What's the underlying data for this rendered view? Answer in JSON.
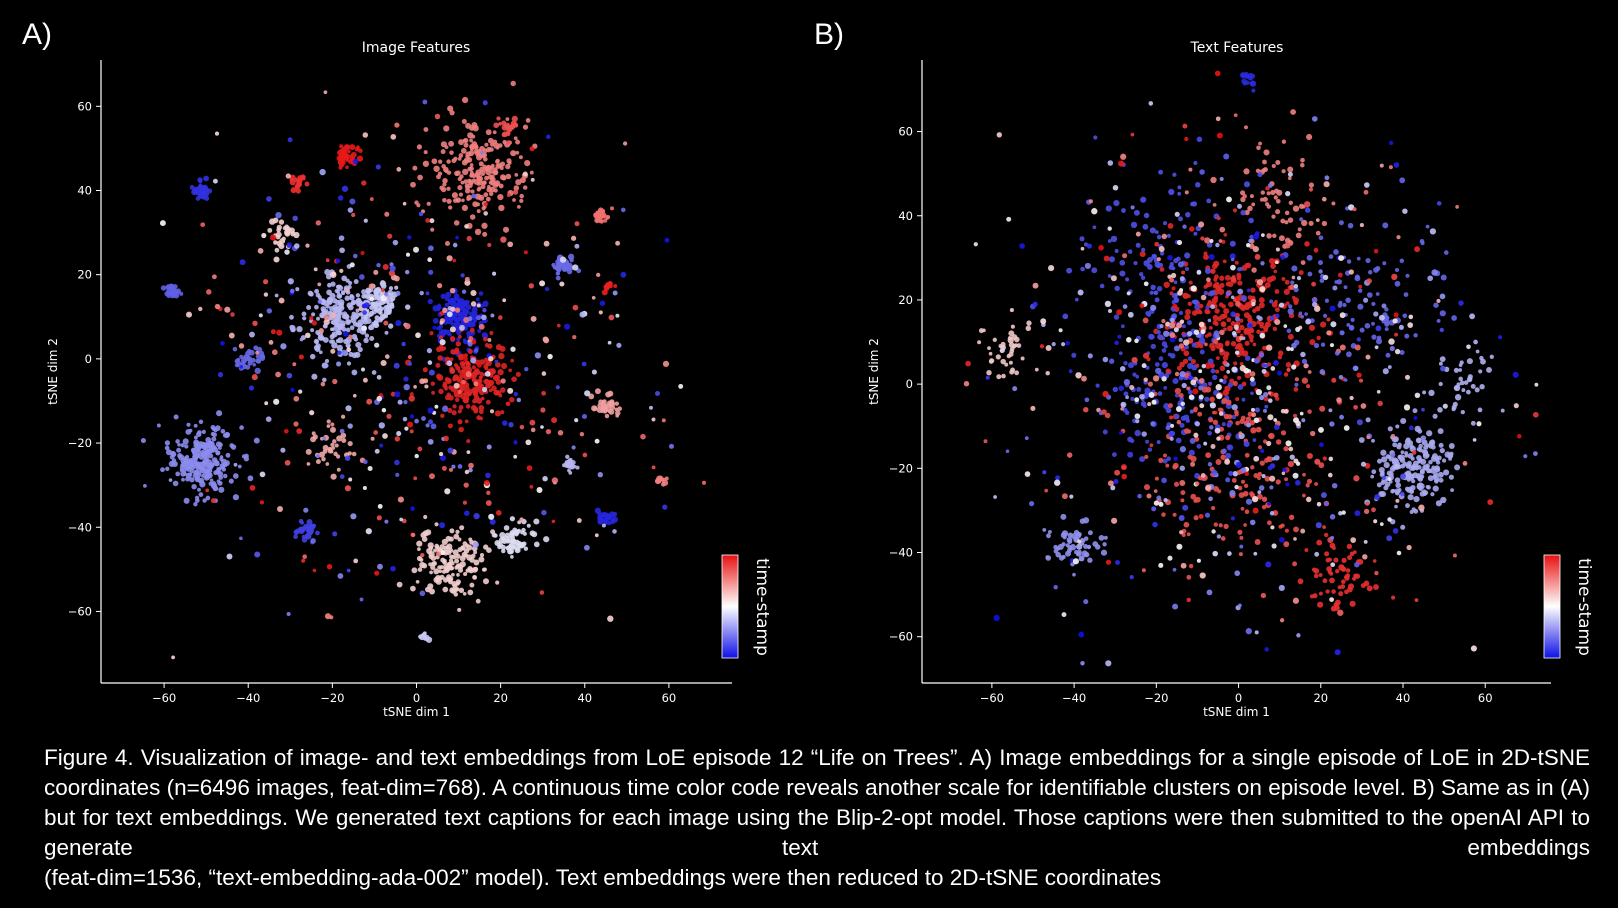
{
  "panels": [
    {
      "letter": "A)"
    },
    {
      "letter": "B)"
    }
  ],
  "chart_data": [
    {
      "type": "scatter",
      "title": "Image Features",
      "xlabel": "tSNE dim 1",
      "ylabel": "tSNE dim 2",
      "xlim": [
        -75,
        75
      ],
      "ylim": [
        -77,
        71
      ],
      "xticks": [
        "−60",
        "−40",
        "−20",
        "0",
        "20",
        "40",
        "60"
      ],
      "xtick_values": [
        -60,
        -40,
        -20,
        0,
        20,
        40,
        60
      ],
      "yticks": [
        "60",
        "40",
        "20",
        "0",
        "−20",
        "−40",
        "−60"
      ],
      "ytick_values": [
        60,
        40,
        20,
        0,
        -20,
        -40,
        -60
      ],
      "colorbar_label": "time-stamp",
      "clusters": [
        {
          "x": -51,
          "y": -24,
          "spread": 4,
          "color": "#8c8cee",
          "count": 230
        },
        {
          "x": -19,
          "y": 10,
          "spread": 5,
          "color": "#b6b6f2",
          "count": 230
        },
        {
          "x": -9,
          "y": 13,
          "spread": 2.5,
          "color": "#c6c6f6",
          "count": 70
        },
        {
          "x": 10,
          "y": 10,
          "spread": 3,
          "color": "#2424dd",
          "count": 150
        },
        {
          "x": 13,
          "y": -5,
          "spread": 4.5,
          "color": "#dd2424",
          "count": 200
        },
        {
          "x": 15,
          "y": 45,
          "spread": 6,
          "color": "#f08080",
          "count": 220
        },
        {
          "x": 8,
          "y": -49,
          "spread": 4,
          "color": "#f2cece",
          "count": 150
        },
        {
          "x": 23,
          "y": -43,
          "spread": 2.5,
          "color": "#dcdcf0",
          "count": 60
        },
        {
          "x": -16,
          "y": 48,
          "spread": 1.3,
          "color": "#e81818",
          "count": 40
        },
        {
          "x": -51,
          "y": 40,
          "spread": 1,
          "color": "#3232e0",
          "count": 40
        },
        {
          "x": -58,
          "y": 16,
          "spread": 0.8,
          "color": "#6060e6",
          "count": 25
        },
        {
          "x": 45,
          "y": -38,
          "spread": 0.9,
          "color": "#2626dd",
          "count": 30
        },
        {
          "x": 35,
          "y": 22,
          "spread": 1.3,
          "color": "#6a6ae8",
          "count": 40
        },
        {
          "x": 44,
          "y": 34,
          "spread": 1,
          "color": "#f07070",
          "count": 30
        },
        {
          "x": 45,
          "y": -11,
          "spread": 1.8,
          "color": "#f0a0a0",
          "count": 35
        },
        {
          "x": -28,
          "y": 42,
          "spread": 0.8,
          "color": "#ee3030",
          "count": 20
        },
        {
          "x": -32,
          "y": 30,
          "spread": 1.5,
          "color": "#f4d0d0",
          "count": 25
        },
        {
          "x": -40,
          "y": 0,
          "spread": 1.8,
          "color": "#6868e6",
          "count": 30
        },
        {
          "x": -26,
          "y": -41,
          "spread": 1.3,
          "color": "#4040e0",
          "count": 28
        },
        {
          "x": -20,
          "y": -21,
          "spread": 2.5,
          "color": "#f0a8a8",
          "count": 35
        },
        {
          "x": 36,
          "y": -25,
          "spread": 1,
          "color": "#b8b8f0",
          "count": 20
        },
        {
          "x": 58,
          "y": -29,
          "spread": 0.6,
          "color": "#f28080",
          "count": 10
        },
        {
          "x": 2,
          "y": -66,
          "spread": 0.6,
          "color": "#c8c8f4",
          "count": 10
        },
        {
          "x": 46,
          "y": 17,
          "spread": 0.7,
          "color": "#e82020",
          "count": 10
        },
        {
          "x": 22,
          "y": 55,
          "spread": 1.2,
          "color": "#ee5050",
          "count": 20
        },
        {
          "x": 0,
          "y": 0,
          "spread": 30,
          "color": "mixed",
          "count": 500
        }
      ]
    },
    {
      "type": "scatter",
      "title": "Text Features",
      "xlabel": "tSNE dim 1",
      "ylabel": "tSNE dim 2",
      "xlim": [
        -77,
        76
      ],
      "ylim": [
        -71,
        77
      ],
      "xticks": [
        "−60",
        "−40",
        "−20",
        "0",
        "20",
        "40",
        "60"
      ],
      "xtick_values": [
        -60,
        -40,
        -20,
        0,
        20,
        40,
        60
      ],
      "yticks": [
        "60",
        "40",
        "20",
        "0",
        "−20",
        "−40",
        "−60"
      ],
      "ytick_values": [
        60,
        40,
        20,
        0,
        -20,
        -40,
        -60
      ],
      "colorbar_label": "time-stamp",
      "clusters": [
        {
          "x": 0,
          "y": 15,
          "spread": 8,
          "color": "#e02828",
          "count": 260
        },
        {
          "x": 42,
          "y": -20,
          "spread": 5,
          "color": "#a8a8ee",
          "count": 200
        },
        {
          "x": -40,
          "y": -38,
          "spread": 3,
          "color": "#9090ec",
          "count": 60
        },
        {
          "x": 10,
          "y": 45,
          "spread": 7,
          "color": "#f08080",
          "count": 70
        },
        {
          "x": -15,
          "y": 0,
          "spread": 10,
          "color": "#4848e2",
          "count": 160
        },
        {
          "x": 2,
          "y": 73,
          "spread": 1.5,
          "color": "#2a2add",
          "count": 20
        },
        {
          "x": 55,
          "y": 0,
          "spread": 4,
          "color": "#b0b0f0",
          "count": 40
        },
        {
          "x": -57,
          "y": 8,
          "spread": 3,
          "color": "#f0c8c8",
          "count": 40
        },
        {
          "x": 25,
          "y": -45,
          "spread": 4,
          "color": "#e83030",
          "count": 60
        },
        {
          "x": -20,
          "y": 30,
          "spread": 10,
          "color": "#5050e4",
          "count": 100
        },
        {
          "x": 30,
          "y": 20,
          "spread": 10,
          "color": "#6666e8",
          "count": 100
        },
        {
          "x": 0,
          "y": -20,
          "spread": 12,
          "color": "#ea5050",
          "count": 150
        },
        {
          "x": 0,
          "y": 0,
          "spread": 33,
          "color": "mixed",
          "count": 700
        }
      ]
    }
  ],
  "caption": {
    "justified": "Figure 4. Visualization of image- and text embeddings from LoE episode 12 “Life on Trees”. A) Image embeddings for a single episode of LoE in 2D-tSNE coordinates (n=6496 images, feat-dim=768). A continuous time color code reveals another scale for identifiable clusters on episode level. B) Same as in (A) but for text embeddings. We generated text captions for each image using the Blip-2-opt model. Those captions were then submitted to the openAI API to generate text embeddings",
    "last": "(feat-dim=1536, “text-embedding-ada-002” model). Text embeddings were then reduced to 2D-tSNE coordinates"
  },
  "colors": {
    "background": "#000000",
    "cmap_low": "#1010e8",
    "cmap_mid": "#ffffff",
    "cmap_high": "#e81010"
  }
}
